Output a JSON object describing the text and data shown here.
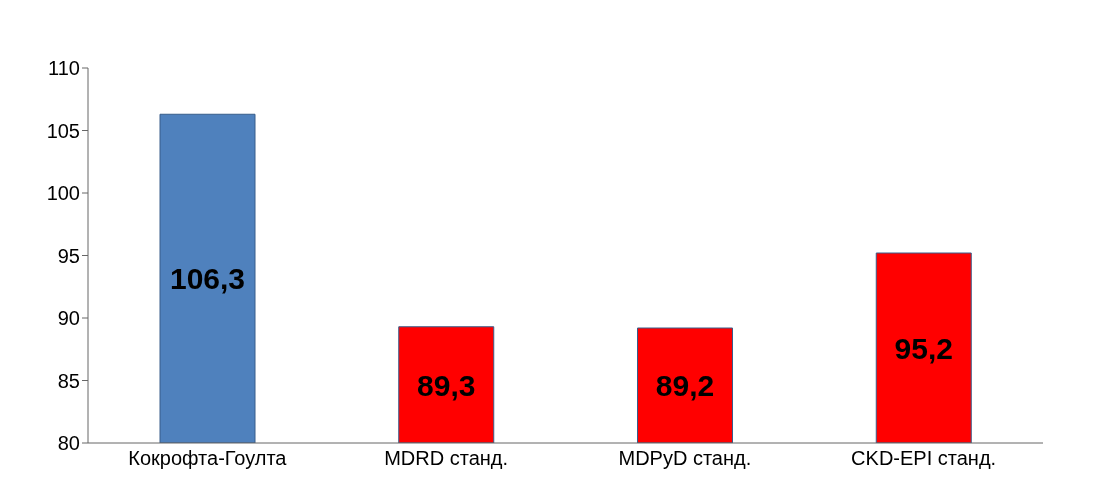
{
  "chart_data": {
    "type": "bar",
    "categories": [
      "Кокрофта-Гоулта",
      "MDRD станд.",
      "MDPyD станд.",
      "CKD-EPI станд."
    ],
    "values": [
      106.3,
      89.3,
      89.2,
      95.2
    ],
    "colors": [
      "#4f81bd",
      "#ff0000",
      "#ff0000",
      "#ff0000"
    ],
    "value_labels": [
      "106,3",
      "89,3",
      "89,2",
      "95,2"
    ],
    "ylim": [
      80,
      110
    ],
    "yticks": [
      80,
      85,
      90,
      95,
      100,
      105,
      110
    ],
    "grid": false
  }
}
